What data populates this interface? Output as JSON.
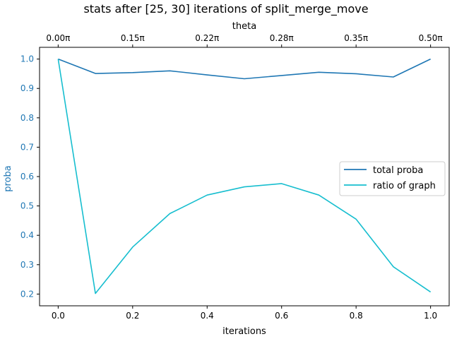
{
  "chart_data": {
    "type": "line",
    "title": "stats after [25, 30] iterations of split_merge_move",
    "xlabel": "iterations",
    "ylabel": "proba",
    "top_xlabel": "theta",
    "xlim": [
      -0.05,
      1.05
    ],
    "ylim": [
      0.16,
      1.04
    ],
    "x_ticks": [
      0.0,
      0.2,
      0.4,
      0.6,
      0.8,
      1.0
    ],
    "x_tick_labels": [
      "0.0",
      "0.2",
      "0.4",
      "0.6",
      "0.8",
      "1.0"
    ],
    "y_ticks": [
      0.2,
      0.3,
      0.4,
      0.5,
      0.6,
      0.7,
      0.8,
      0.9,
      1.0
    ],
    "y_tick_labels": [
      "0.2",
      "0.3",
      "0.4",
      "0.5",
      "0.6",
      "0.7",
      "0.8",
      "0.9",
      "1.0"
    ],
    "top_ticks": [
      0.0,
      0.2,
      0.4,
      0.6,
      0.8,
      1.0
    ],
    "top_tick_labels": [
      "0.00π",
      "0.15π",
      "0.22π",
      "0.28π",
      "0.35π",
      "0.50π"
    ],
    "ylabel_color": "#1f77b4",
    "ytick_color": "#1f77b4",
    "grid": false,
    "legend_position": "center-right",
    "x": [
      0.0,
      0.1,
      0.2,
      0.3,
      0.4,
      0.5,
      0.6,
      0.7,
      0.8,
      0.9,
      1.0
    ],
    "series": [
      {
        "name": "total proba",
        "color": "#1f77b4",
        "values": [
          1.0,
          0.951,
          0.954,
          0.96,
          0.946,
          0.933,
          0.944,
          0.955,
          0.95,
          0.939,
          1.0
        ]
      },
      {
        "name": "ratio of graph",
        "color": "#17becf",
        "values": [
          1.0,
          0.202,
          0.36,
          0.474,
          0.537,
          0.565,
          0.576,
          0.537,
          0.455,
          0.293,
          0.207
        ]
      }
    ]
  }
}
